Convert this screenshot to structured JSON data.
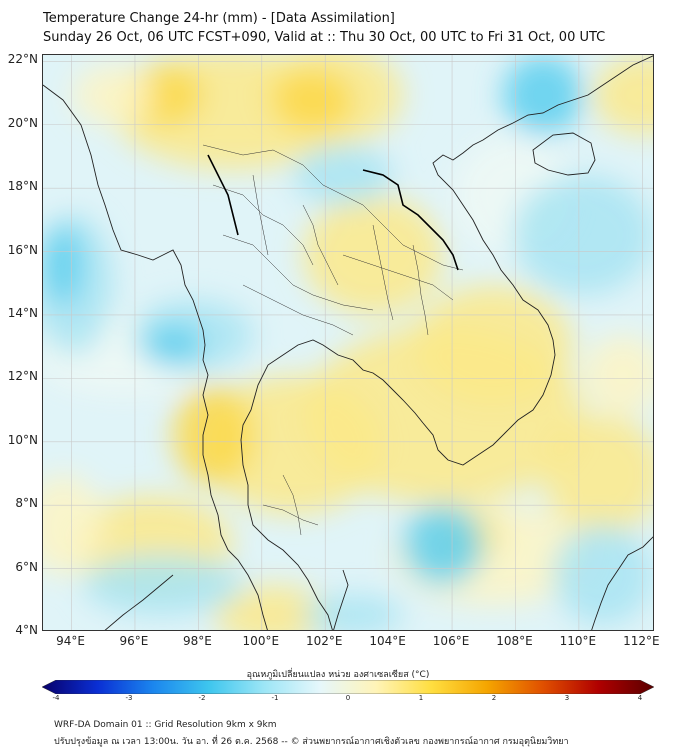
{
  "header": {
    "title": "Temperature Change 24-hr (mm) - [Data Assimilation]",
    "subtitle": "Sunday 26 Oct, 06 UTC FCST+090, Valid at :: Thu 30 Oct, 00 UTC to Fri 31 Oct, 00 UTC"
  },
  "axes": {
    "lat_labels": [
      "22°N",
      "20°N",
      "18°N",
      "16°N",
      "14°N",
      "12°N",
      "10°N",
      "8°N",
      "6°N",
      "4°N"
    ],
    "lon_labels": [
      "94°E",
      "96°E",
      "98°E",
      "100°E",
      "102°E",
      "104°E",
      "106°E",
      "108°E",
      "110°E",
      "112°E"
    ],
    "lat_range": [
      4,
      22.2
    ],
    "lon_range": [
      93.1,
      112.4
    ],
    "grid": true
  },
  "colorbar": {
    "label": "อุณหภูมิเปลี่ยนแปลง หน่วย องศาเซลเซียส (°C)",
    "ticks": [
      "-4",
      "-3",
      "-2",
      "-1",
      "0",
      "1",
      "2",
      "3",
      "4"
    ],
    "range": [
      -4,
      4
    ],
    "colors": [
      "#08006a",
      "#0a2fd4",
      "#1b86ee",
      "#3ec6ee",
      "#9de6f6",
      "#e6f7fb",
      "#fff4b8",
      "#ffde40",
      "#f5a500",
      "#e05000",
      "#b00000",
      "#5a0000"
    ]
  },
  "footer": {
    "line1": "WRF-DA Domain 01 :: Grid Resolution 9km x 9km",
    "line2": "ปรับปรุงข้อมูล ณ เวลา 13:00น. วัน อา. ที่ 26 ต.ค. 2568 -- © ส่วนพยากรณ์อากาศเชิงตัวเลข กองพยากรณ์อากาศ กรมอุตุนิยมวิทยา"
  },
  "field": {
    "background": "#e0f4f8",
    "colors": {
      "warm_strong": "#fcd84a",
      "warm": "#fce98a",
      "warm_light": "#fdf4c4",
      "neutral": "#eef8f5",
      "cool": "#a8e4f2",
      "cool_strong": "#5ccfee"
    }
  }
}
